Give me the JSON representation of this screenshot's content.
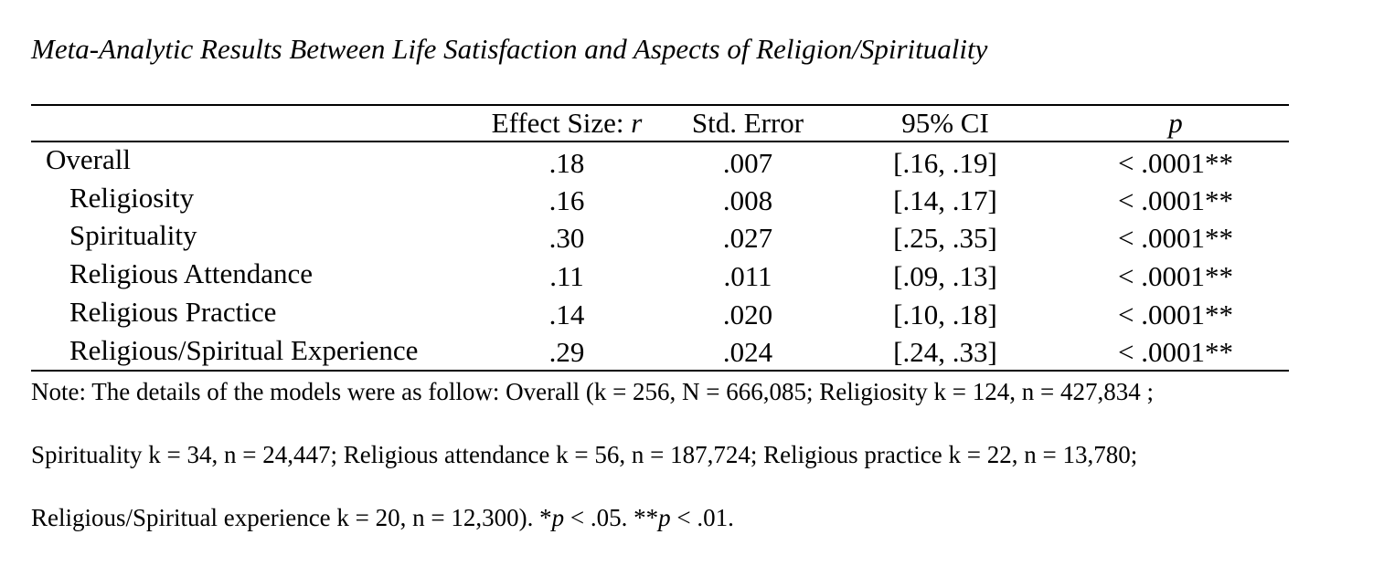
{
  "title": "Meta-Analytic Results Between Life Satisfaction and Aspects of Religion/Spirituality",
  "headers": {
    "effect_size_prefix": "Effect Size: ",
    "effect_size_symbol": "r",
    "std_error": "Std. Error",
    "ci": "95% CI",
    "p": "p"
  },
  "rows": [
    {
      "label": "Overall",
      "r": ".18",
      "se": ".007",
      "ci": "[.16, .19]",
      "p": "< .0001**"
    },
    {
      "label": "Religiosity",
      "r": ".16",
      "se": ".008",
      "ci": "[.14, .17]",
      "p": "< .0001**"
    },
    {
      "label": "Spirituality",
      "r": ".30",
      "se": ".027",
      "ci": "[.25, .35]",
      "p": "< .0001**"
    },
    {
      "label": "Religious Attendance",
      "r": ".11",
      "se": ".011",
      "ci": "[.09, .13]",
      "p": "< .0001**"
    },
    {
      "label": "Religious Practice",
      "r": ".14",
      "se": ".020",
      "ci": "[.10, .18]",
      "p": "< .0001**"
    },
    {
      "label": "Religious/Spiritual Experience",
      "r": ".29",
      "se": ".024",
      "ci": "[.24, .33]",
      "p": "< .0001**"
    }
  ],
  "note": {
    "line1": "Note: The details of the models were as follow: Overall (k = 256, N = 666,085; Religiosity k = 124, n = 427,834 ;",
    "line2": "Spirituality k = 34, n = 24,447; Religious attendance k = 56, n = 187,724; Religious practice k = 22, n = 13,780;",
    "line3_text": "Religious/Spiritual experience k = 20, n = 12,300). *",
    "line3_p1": "p",
    "line3_mid": " < .05.  **",
    "line3_p2": "p",
    "line3_end": " < .01."
  }
}
